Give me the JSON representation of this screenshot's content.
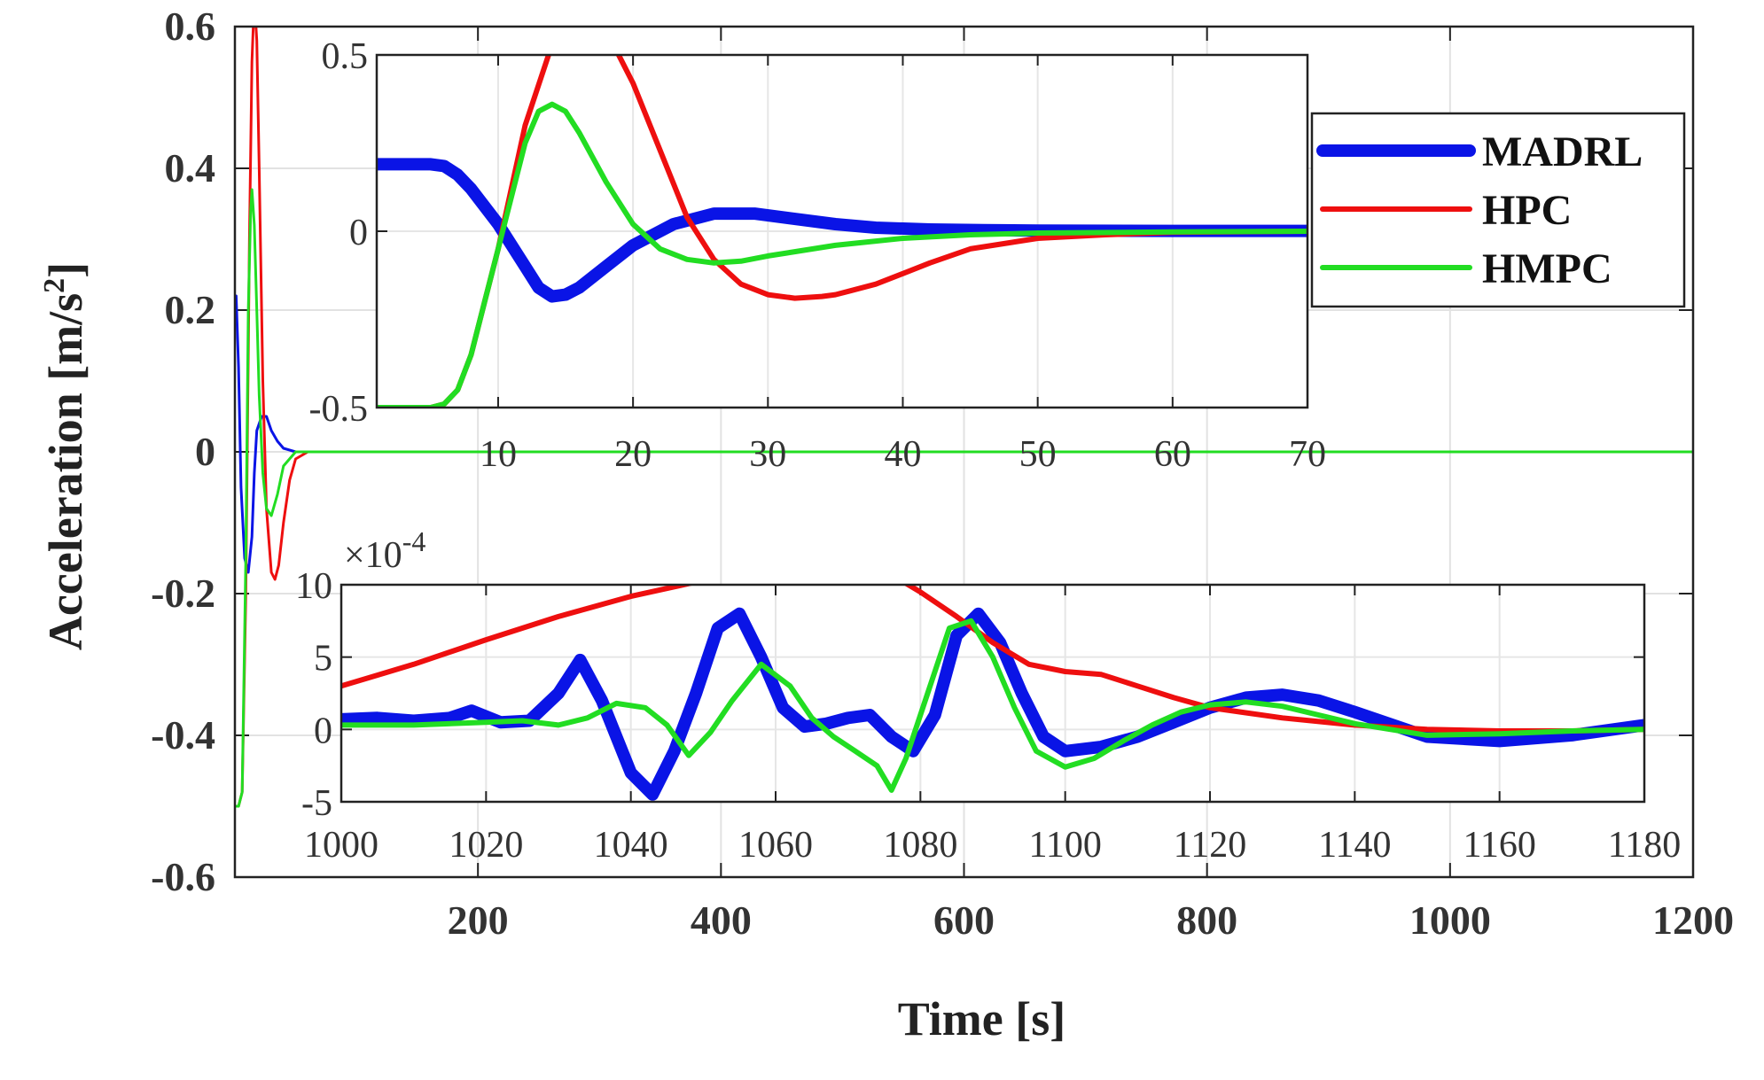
{
  "chart_data": [
    {
      "id": "main",
      "type": "line",
      "xlabel": "Time [s]",
      "ylabel": "Acceleration [m/s",
      "ylabel_sup": "2",
      "ylabel_close": "]",
      "xlim": [
        0,
        1200
      ],
      "ylim": [
        -0.6,
        0.6
      ],
      "x_ticks": [
        200,
        400,
        600,
        800,
        1000,
        1200
      ],
      "x_tick_labels": [
        "200",
        "400",
        "600",
        "800",
        "1000",
        "1200"
      ],
      "y_ticks": [
        -0.6,
        -0.4,
        -0.2,
        0,
        0.2,
        0.4,
        0.6
      ],
      "y_tick_labels": [
        "-0.6",
        "-0.4",
        "-0.2",
        "0",
        "0.2",
        "0.4",
        "0.6"
      ],
      "grid": true,
      "legend_position": "top-right",
      "series": [
        {
          "name": "MADRL",
          "color": "#0a14e6",
          "width": 3,
          "x": [
            0,
            1,
            3,
            5,
            8,
            11,
            14,
            16,
            18,
            22,
            26,
            30,
            35,
            40,
            50,
            60,
            80,
            1200
          ],
          "y": [
            0.18,
            0.22,
            0.12,
            -0.05,
            -0.15,
            -0.17,
            -0.12,
            -0.03,
            0.03,
            0.05,
            0.05,
            0.03,
            0.015,
            0.005,
            0,
            0,
            0,
            0
          ]
        },
        {
          "name": "HPC",
          "color": "#ee0f0f",
          "width": 3,
          "x": [
            0,
            3,
            6,
            9,
            12,
            14,
            16,
            18,
            20,
            23,
            26,
            30,
            33,
            36,
            40,
            45,
            50,
            60,
            80,
            1200
          ],
          "y": [
            -0.5,
            -0.5,
            -0.48,
            -0.2,
            0.3,
            0.55,
            0.64,
            0.58,
            0.4,
            0.1,
            -0.08,
            -0.17,
            -0.18,
            -0.16,
            -0.1,
            -0.04,
            -0.01,
            0,
            0,
            0
          ]
        },
        {
          "name": "HMPC",
          "color": "#22dd22",
          "width": 3,
          "x": [
            0,
            3,
            6,
            9,
            11,
            13,
            14,
            16,
            18,
            20,
            23,
            26,
            30,
            35,
            40,
            50,
            60,
            80,
            1200
          ],
          "y": [
            -0.5,
            -0.5,
            -0.48,
            -0.15,
            0.2,
            0.34,
            0.37,
            0.32,
            0.2,
            0.08,
            -0.03,
            -0.08,
            -0.09,
            -0.06,
            -0.02,
            0,
            0,
            0,
            0
          ]
        }
      ]
    },
    {
      "id": "inset-top",
      "type": "line",
      "xlim": [
        1,
        70
      ],
      "ylim": [
        -0.5,
        0.5
      ],
      "x_ticks": [
        10,
        20,
        30,
        40,
        50,
        60,
        70
      ],
      "x_tick_labels": [
        "10",
        "20",
        "30",
        "40",
        "50",
        "60",
        "70"
      ],
      "y_ticks": [
        -0.5,
        0,
        0.5
      ],
      "y_tick_labels": [
        "-0.5",
        "0",
        "0.5"
      ],
      "grid": true,
      "series": [
        {
          "name": "MADRL",
          "color": "#0a14e6",
          "width": 14,
          "x": [
            1,
            3,
            5,
            6,
            7,
            8,
            10,
            12,
            13,
            14,
            15,
            16,
            18,
            20,
            23,
            26,
            29,
            32,
            35,
            38,
            42,
            46,
            50,
            60,
            70
          ],
          "y": [
            0.19,
            0.19,
            0.19,
            0.185,
            0.16,
            0.12,
            0.02,
            -0.1,
            -0.16,
            -0.185,
            -0.18,
            -0.16,
            -0.1,
            -0.04,
            0.02,
            0.05,
            0.05,
            0.035,
            0.02,
            0.01,
            0.005,
            0.003,
            0.002,
            0.001,
            0.001
          ]
        },
        {
          "name": "HPC",
          "color": "#ee0f0f",
          "width": 6,
          "x": [
            1,
            3,
            5,
            6,
            7,
            8,
            9,
            10,
            12,
            14,
            16,
            18,
            20,
            22,
            24,
            26,
            28,
            30,
            32,
            34,
            35,
            36,
            38,
            40,
            42,
            45,
            50,
            55,
            60,
            70
          ],
          "y": [
            -0.5,
            -0.5,
            -0.5,
            -0.49,
            -0.45,
            -0.35,
            -0.2,
            -0.05,
            0.3,
            0.53,
            0.62,
            0.57,
            0.42,
            0.23,
            0.04,
            -0.08,
            -0.15,
            -0.18,
            -0.19,
            -0.185,
            -0.18,
            -0.17,
            -0.15,
            -0.12,
            -0.09,
            -0.05,
            -0.02,
            -0.01,
            -0.003,
            0
          ]
        },
        {
          "name": "HMPC",
          "color": "#22dd22",
          "width": 6,
          "x": [
            1,
            3,
            5,
            6,
            7,
            8,
            9,
            10,
            12,
            13,
            14,
            15,
            16,
            18,
            20,
            22,
            24,
            26,
            28,
            30,
            35,
            40,
            45,
            50,
            60,
            70
          ],
          "y": [
            -0.5,
            -0.5,
            -0.5,
            -0.49,
            -0.45,
            -0.35,
            -0.2,
            -0.05,
            0.25,
            0.34,
            0.36,
            0.34,
            0.28,
            0.14,
            0.02,
            -0.05,
            -0.08,
            -0.09,
            -0.085,
            -0.07,
            -0.04,
            -0.02,
            -0.01,
            -0.005,
            -0.002,
            0
          ]
        }
      ]
    },
    {
      "id": "inset-bottom",
      "type": "line",
      "exponent_label": "×10",
      "exponent_power": "-4",
      "xlim": [
        1000,
        1180
      ],
      "ylim": [
        -5,
        10
      ],
      "x_ticks": [
        1000,
        1020,
        1040,
        1060,
        1080,
        1100,
        1120,
        1140,
        1160,
        1180
      ],
      "x_tick_labels": [
        "1000",
        "1020",
        "1040",
        "1060",
        "1080",
        "1100",
        "1120",
        "1140",
        "1160",
        "1180"
      ],
      "y_ticks": [
        -5,
        0,
        5,
        10
      ],
      "y_tick_labels": [
        "-5",
        "0",
        "5",
        "10"
      ],
      "grid": true,
      "series": [
        {
          "name": "MADRL",
          "color": "#0a14e6",
          "width": 14,
          "x": [
            1000,
            1005,
            1010,
            1015,
            1018,
            1022,
            1026,
            1030,
            1033,
            1036,
            1040,
            1043,
            1046,
            1049,
            1052,
            1055,
            1058,
            1061,
            1064,
            1067,
            1070,
            1073,
            1076,
            1079,
            1082,
            1085,
            1088,
            1091,
            1094,
            1097,
            1100,
            1105,
            1110,
            1115,
            1120,
            1125,
            1130,
            1135,
            1140,
            1150,
            1160,
            1170,
            1180
          ],
          "y": [
            0.7,
            0.8,
            0.6,
            0.8,
            1.3,
            0.5,
            0.6,
            2.5,
            4.8,
            2.0,
            -3.0,
            -4.5,
            -1.5,
            2.5,
            7.0,
            8.0,
            5.0,
            1.5,
            0.2,
            0.4,
            0.8,
            1.0,
            -0.5,
            -1.5,
            1.0,
            6.5,
            8.0,
            6.0,
            2.5,
            -0.5,
            -1.5,
            -1.2,
            -0.5,
            0.5,
            1.5,
            2.2,
            2.4,
            2.0,
            1.2,
            -0.5,
            -0.8,
            -0.4,
            0.3
          ]
        },
        {
          "name": "HPC",
          "color": "#ee0f0f",
          "width": 6,
          "x": [
            1000,
            1010,
            1020,
            1030,
            1040,
            1050,
            1060,
            1065,
            1070,
            1075,
            1080,
            1085,
            1090,
            1095,
            1100,
            1105,
            1110,
            1115,
            1120,
            1130,
            1140,
            1150,
            1160,
            1170,
            1180
          ],
          "y": [
            3.0,
            4.5,
            6.2,
            7.8,
            9.2,
            10.3,
            11.0,
            11.2,
            11.3,
            11.0,
            9.5,
            7.8,
            6.0,
            4.5,
            4.0,
            3.8,
            3.0,
            2.2,
            1.5,
            0.8,
            0.3,
            0.0,
            -0.1,
            -0.1,
            0.0
          ]
        },
        {
          "name": "HMPC",
          "color": "#22dd22",
          "width": 6,
          "x": [
            1000,
            1010,
            1020,
            1025,
            1030,
            1034,
            1038,
            1042,
            1045,
            1048,
            1051,
            1054,
            1058,
            1062,
            1065,
            1068,
            1071,
            1074,
            1076,
            1078,
            1081,
            1084,
            1087,
            1090,
            1093,
            1096,
            1100,
            1104,
            1108,
            1112,
            1116,
            1120,
            1125,
            1130,
            1135,
            1140,
            1150,
            1160,
            1170,
            1180
          ],
          "y": [
            0.3,
            0.3,
            0.5,
            0.6,
            0.3,
            0.8,
            1.8,
            1.5,
            0.3,
            -1.8,
            -0.2,
            2.0,
            4.5,
            3.0,
            0.8,
            -0.5,
            -1.5,
            -2.5,
            -4.2,
            -2.0,
            2.5,
            7.0,
            7.5,
            5.0,
            1.5,
            -1.5,
            -2.6,
            -2.0,
            -0.8,
            0.3,
            1.2,
            1.7,
            1.9,
            1.6,
            1.0,
            0.4,
            -0.4,
            -0.3,
            -0.1,
            0.0
          ]
        }
      ]
    }
  ],
  "legend": {
    "items": [
      {
        "label": "MADRL",
        "color": "#0a14e6"
      },
      {
        "label": "HPC",
        "color": "#ee0f0f"
      },
      {
        "label": "HMPC",
        "color": "#22dd22"
      }
    ]
  }
}
